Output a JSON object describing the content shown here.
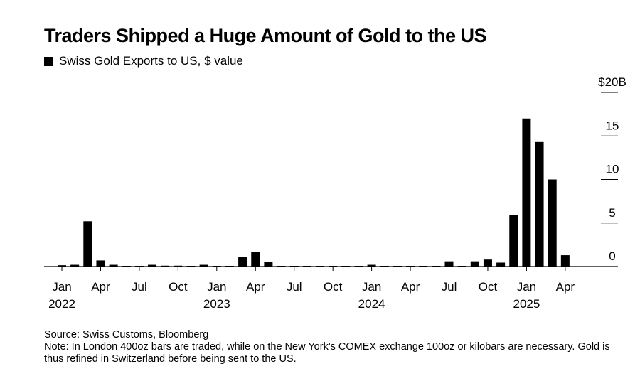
{
  "title": "Traders Shipped a Huge Amount of Gold to the US",
  "legend": {
    "label": "Swiss Gold Exports to US, $ value"
  },
  "source": "Source: Swiss Customs, Bloomberg",
  "note": "Note: In London 400oz bars are traded, while on the New York's COMEX exchange 100oz or kilobars are necessary. Gold is thus refined in Switzerland before being sent to the US.",
  "chart_data": {
    "type": "bar",
    "color": "#000000",
    "xlabel": "",
    "ylabel": "",
    "ylim": [
      0,
      20
    ],
    "y_ticks": [
      {
        "value": 20,
        "label": "$20B"
      },
      {
        "value": 15,
        "label": "15"
      },
      {
        "value": 10,
        "label": "10"
      },
      {
        "value": 5,
        "label": "5"
      },
      {
        "value": 0,
        "label": "0"
      }
    ],
    "x_ticks": [
      {
        "month": "2022-01",
        "label": "Jan",
        "year": "2022"
      },
      {
        "month": "2022-04",
        "label": "Apr"
      },
      {
        "month": "2022-07",
        "label": "Jul"
      },
      {
        "month": "2022-10",
        "label": "Oct"
      },
      {
        "month": "2023-01",
        "label": "Jan",
        "year": "2023"
      },
      {
        "month": "2023-04",
        "label": "Apr"
      },
      {
        "month": "2023-07",
        "label": "Jul"
      },
      {
        "month": "2023-10",
        "label": "Oct"
      },
      {
        "month": "2024-01",
        "label": "Jan",
        "year": "2024"
      },
      {
        "month": "2024-04",
        "label": "Apr"
      },
      {
        "month": "2024-07",
        "label": "Jul"
      },
      {
        "month": "2024-10",
        "label": "Oct"
      },
      {
        "month": "2025-01",
        "label": "Jan",
        "year": "2025"
      },
      {
        "month": "2025-04",
        "label": "Apr"
      }
    ],
    "grid": false,
    "months": [
      "2022-01",
      "2022-02",
      "2022-03",
      "2022-04",
      "2022-05",
      "2022-06",
      "2022-07",
      "2022-08",
      "2022-09",
      "2022-10",
      "2022-11",
      "2022-12",
      "2023-01",
      "2023-02",
      "2023-03",
      "2023-04",
      "2023-05",
      "2023-06",
      "2023-07",
      "2023-08",
      "2023-09",
      "2023-10",
      "2023-11",
      "2023-12",
      "2024-01",
      "2024-02",
      "2024-03",
      "2024-04",
      "2024-05",
      "2024-06",
      "2024-07",
      "2024-08",
      "2024-09",
      "2024-10",
      "2024-11",
      "2024-12",
      "2025-01",
      "2025-02",
      "2025-03",
      "2025-04"
    ],
    "values": [
      0.15,
      0.2,
      5.2,
      0.7,
      0.2,
      0.05,
      0.05,
      0.2,
      0.1,
      0.1,
      0.05,
      0.2,
      0.05,
      0.05,
      1.1,
      1.7,
      0.5,
      0.05,
      0.05,
      0.05,
      0.05,
      0.05,
      0.05,
      0.05,
      0.2,
      0.05,
      0.05,
      0.05,
      0.05,
      0.05,
      0.6,
      0.05,
      0.6,
      0.8,
      0.45,
      5.9,
      17.0,
      14.3,
      10.0,
      1.3
    ]
  }
}
